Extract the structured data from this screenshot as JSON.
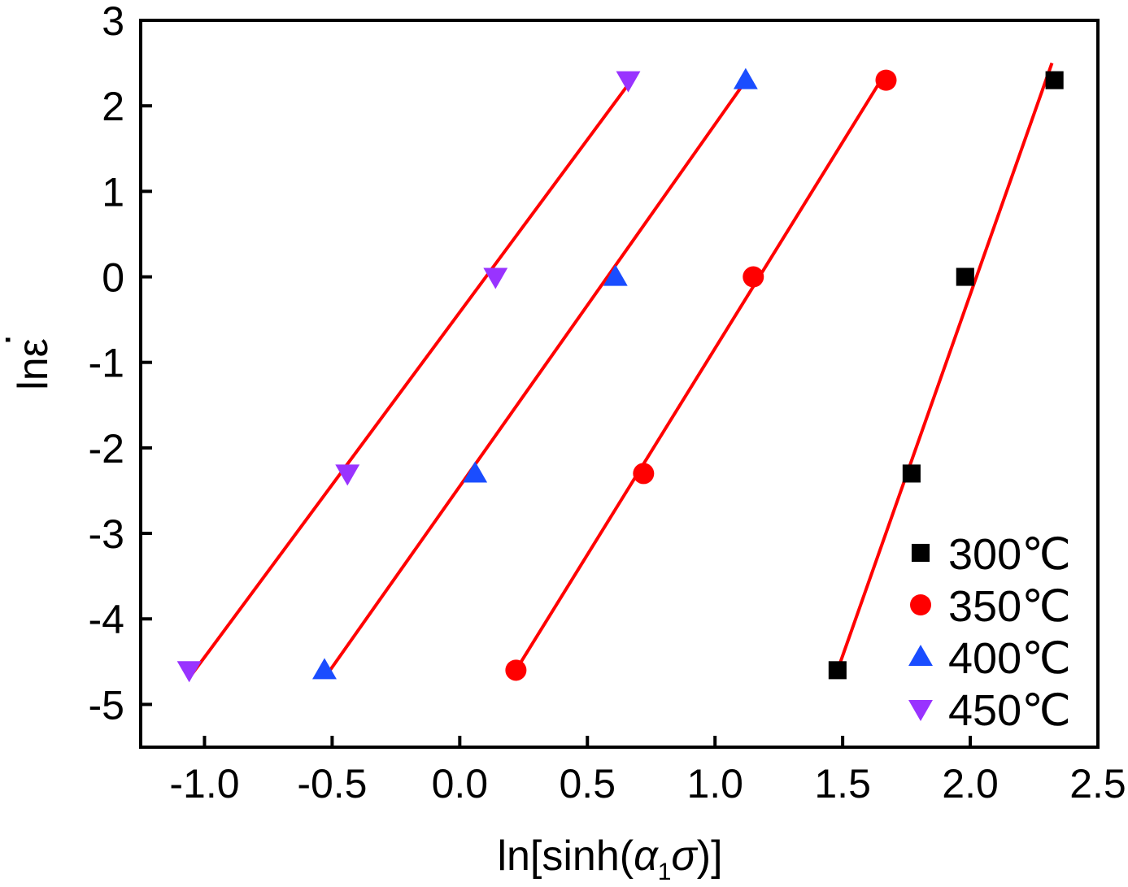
{
  "chart_data": {
    "type": "scatter",
    "title": "",
    "xlabel": {
      "prefix": "ln[sinh(",
      "alpha": "α",
      "alpha_subscript": "1",
      "sigma": "σ",
      "suffix": ")]"
    },
    "ylabel": {
      "text": "lnε",
      "dot": "·"
    },
    "xlim": [
      -1.25,
      2.5
    ],
    "ylim": [
      -5.5,
      3
    ],
    "xticks": [
      -1.0,
      -0.5,
      0.0,
      0.5,
      1.0,
      1.5,
      2.0,
      2.5
    ],
    "xtick_labels": [
      "-1.0",
      "-0.5",
      "0.0",
      "0.5",
      "1.0",
      "1.5",
      "2.0",
      "2.5"
    ],
    "yticks": [
      -5,
      -4,
      -3,
      -2,
      -1,
      0,
      1,
      2,
      3
    ],
    "ytick_labels": [
      "-5",
      "-4",
      "-3",
      "-2",
      "-1",
      "0",
      "1",
      "2",
      "3"
    ],
    "legend_position": "bottom-right",
    "fit_color": "#ff0000",
    "series": [
      {
        "name": "300℃",
        "marker": "square",
        "color": "#000000",
        "x": [
          1.48,
          1.77,
          1.98,
          2.33
        ],
        "y": [
          -4.6,
          -2.3,
          0.0,
          2.3
        ],
        "fit": {
          "x": [
            1.48,
            2.32
          ],
          "y": [
            -4.6,
            2.5
          ]
        }
      },
      {
        "name": "350℃",
        "marker": "circle",
        "color": "#ff0000",
        "x": [
          0.22,
          0.72,
          1.15,
          1.67
        ],
        "y": [
          -4.6,
          -2.3,
          0.0,
          2.3
        ],
        "fit": {
          "x": [
            0.22,
            1.65
          ],
          "y": [
            -4.6,
            2.3
          ]
        }
      },
      {
        "name": "400℃",
        "marker": "triangle-up",
        "color": "#1a4dff",
        "x": [
          -0.53,
          0.06,
          0.61,
          1.12
        ],
        "y": [
          -4.6,
          -2.3,
          0.0,
          2.3
        ],
        "fit": {
          "x": [
            -0.52,
            1.11
          ],
          "y": [
            -4.65,
            2.25
          ]
        }
      },
      {
        "name": "450℃",
        "marker": "triangle-down",
        "color": "#9933ff",
        "x": [
          -1.06,
          -0.44,
          0.14,
          0.66
        ],
        "y": [
          -4.6,
          -2.3,
          0.0,
          2.3
        ],
        "fit": {
          "x": [
            -1.05,
            0.66
          ],
          "y": [
            -4.65,
            2.25
          ]
        }
      }
    ]
  }
}
